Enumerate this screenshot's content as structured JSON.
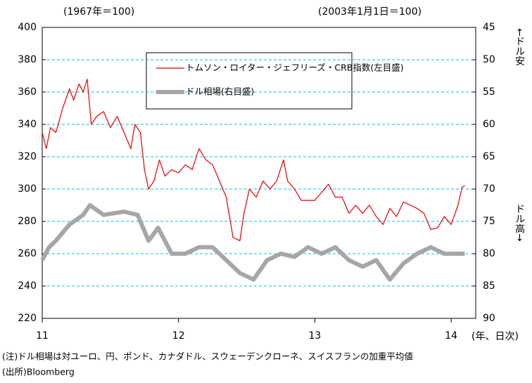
{
  "chart_data": {
    "type": "line",
    "left_axis_note": "(1967年＝100)",
    "right_axis_note": "(2003年1月1日＝100)",
    "y2_top_annotation": "←ドル安",
    "y2_bottom_annotation": "ドル高→",
    "x_label": "(年、日次)",
    "note": "(注)ドル相場は対ユーロ、円、ポンド、カナダドル、スウェーデンクローネ、スイスフランの加重平均値",
    "source": "(出所)Bloomberg",
    "xlim": [
      11,
      14.18
    ],
    "xticks": [
      11,
      12,
      13,
      14
    ],
    "ylim": [
      220,
      400
    ],
    "yticks": [
      220,
      240,
      260,
      280,
      300,
      320,
      340,
      360,
      380,
      400
    ],
    "y2lim": [
      90,
      45
    ],
    "y2ticks": [
      45,
      50,
      55,
      60,
      65,
      70,
      75,
      80,
      85,
      90
    ],
    "grid": true,
    "legend": "top",
    "series": [
      {
        "name": "トムソン・ロイター・ジェフリーズ・CRB指数(左目盛)",
        "color": "#e60000",
        "x": [
          11.0,
          11.03,
          11.06,
          11.1,
          11.15,
          11.2,
          11.23,
          11.27,
          11.3,
          11.33,
          11.36,
          11.4,
          11.45,
          11.5,
          11.55,
          11.6,
          11.65,
          11.68,
          11.72,
          11.75,
          11.78,
          11.82,
          11.86,
          11.9,
          11.95,
          12.0,
          12.05,
          12.1,
          12.15,
          12.2,
          12.25,
          12.3,
          12.35,
          12.4,
          12.45,
          12.48,
          12.52,
          12.57,
          12.62,
          12.67,
          12.72,
          12.77,
          12.8,
          12.85,
          12.9,
          13.0,
          13.05,
          13.1,
          13.15,
          13.2,
          13.25,
          13.3,
          13.35,
          13.4,
          13.45,
          13.5,
          13.55,
          13.6,
          13.65,
          13.7,
          13.75,
          13.8,
          13.85,
          13.9,
          13.95,
          14.0,
          14.05,
          14.08,
          14.1
        ],
        "values": [
          335,
          325,
          338,
          335,
          350,
          362,
          355,
          365,
          360,
          368,
          340,
          345,
          348,
          338,
          345,
          335,
          325,
          340,
          335,
          312,
          300,
          305,
          318,
          308,
          312,
          310,
          315,
          312,
          325,
          318,
          315,
          305,
          295,
          270,
          268,
          285,
          300,
          295,
          305,
          300,
          305,
          318,
          305,
          300,
          293,
          293,
          298,
          303,
          295,
          295,
          285,
          290,
          285,
          290,
          283,
          278,
          288,
          283,
          292,
          290,
          288,
          285,
          275,
          276,
          283,
          278,
          290,
          301,
          302
        ]
      },
      {
        "name": "ドル相場(右目盛)",
        "color": "#a6a6a6",
        "axis": "y2",
        "x": [
          11.0,
          11.05,
          11.1,
          11.2,
          11.3,
          11.35,
          11.45,
          11.6,
          11.7,
          11.78,
          11.85,
          11.95,
          12.05,
          12.15,
          12.25,
          12.35,
          12.45,
          12.55,
          12.65,
          12.75,
          12.85,
          12.95,
          13.05,
          13.15,
          13.25,
          13.35,
          13.45,
          13.55,
          13.65,
          13.75,
          13.85,
          13.95,
          14.05,
          14.1
        ],
        "values": [
          81,
          79,
          78,
          75.5,
          74,
          72.5,
          74,
          73.5,
          74,
          78,
          76,
          80,
          80,
          79,
          79,
          81,
          83,
          84,
          81,
          80,
          80.5,
          79,
          80,
          79,
          81,
          82,
          81,
          84,
          81.5,
          80,
          79,
          80,
          80,
          80
        ]
      }
    ]
  }
}
